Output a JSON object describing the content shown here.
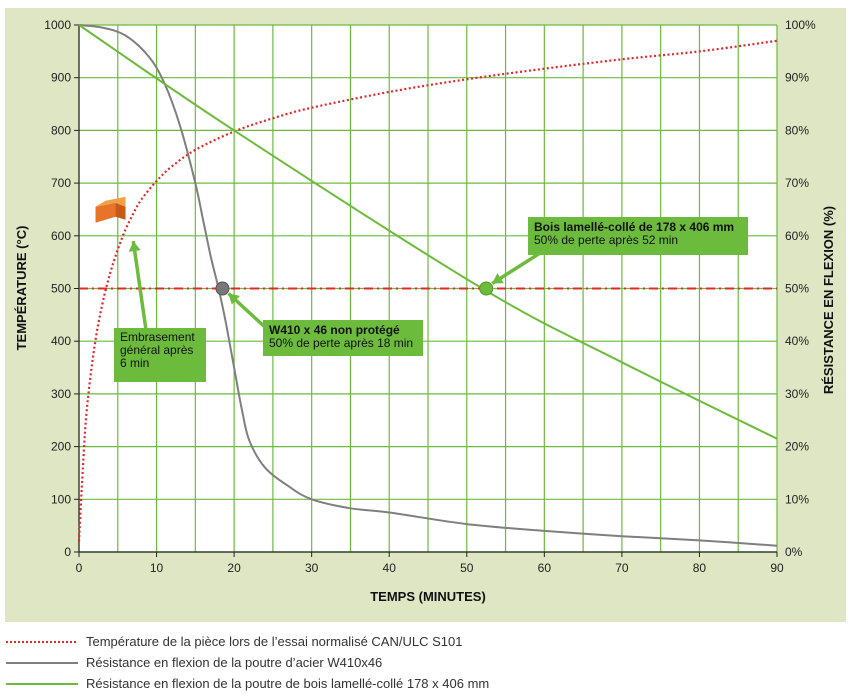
{
  "chart_data": {
    "type": "line",
    "xlabel": "TEMPS (MINUTES)",
    "ylabel_left": "TEMPÉRATURE (°C)",
    "ylabel_right": "RÉSISTANCE EN FLEXION (%)",
    "xlim": [
      0,
      90
    ],
    "ylim_left": [
      0,
      1000
    ],
    "ylim_right": [
      0,
      100
    ],
    "x_ticks": [
      "0",
      "10",
      "20",
      "30",
      "40",
      "50",
      "60",
      "70",
      "80",
      "90"
    ],
    "y_ticks_left": [
      "0",
      "100",
      "200",
      "300",
      "400",
      "500",
      "600",
      "700",
      "800",
      "900",
      "1000"
    ],
    "y_ticks_right": [
      "0%",
      "10%",
      "20%",
      "30%",
      "40%",
      "50%",
      "60%",
      "70%",
      "80%",
      "90%",
      "100%"
    ],
    "grid": true,
    "legend_position": "bottom",
    "reference_line": {
      "axis": "right",
      "value": 50
    },
    "series": [
      {
        "name": "Température de la pièce lors de l’essai normalisé CAN/ULC S101",
        "axis": "left",
        "style": "dotted",
        "color": "#e0282a",
        "x": [
          0,
          0.5,
          1,
          2,
          3,
          4,
          5,
          6,
          7,
          8,
          10,
          12,
          15,
          20,
          25,
          30,
          40,
          50,
          60,
          70,
          80,
          90
        ],
        "y": [
          20,
          160,
          270,
          390,
          470,
          528,
          574,
          612,
          642,
          668,
          704,
          732,
          763,
          798,
          823,
          843,
          873,
          897,
          917,
          935,
          950,
          970
        ]
      },
      {
        "name": "Résistance en flexion de la poutre d’acier W410x46",
        "axis": "right",
        "style": "solid",
        "color": "#7f7f7f",
        "x": [
          0,
          3,
          6,
          9,
          11,
          13,
          15,
          16,
          17,
          18,
          19,
          20,
          21,
          22,
          24,
          27,
          30,
          35,
          40,
          50,
          60,
          70,
          80,
          90
        ],
        "y": [
          100,
          99.5,
          98,
          94,
          89,
          81,
          70,
          63,
          56,
          50,
          43,
          35,
          27,
          21,
          16,
          12.5,
          10,
          8.3,
          7.5,
          5.3,
          4,
          3,
          2.2,
          1.2
        ]
      },
      {
        "name": "Résistance en flexion de la poutre de bois lamellé-collé 178 x 406 mm",
        "axis": "right",
        "style": "solid",
        "color": "#6dbb3c",
        "x": [
          0,
          20,
          52,
          70,
          90
        ],
        "y": [
          100,
          80,
          50,
          36,
          21.5
        ]
      }
    ],
    "markers": [
      {
        "label": "Embrasement général après 6 min",
        "x": 6,
        "y_left": 640,
        "icon": "orange-block"
      },
      {
        "label": "W410 x 46 non protégé",
        "x": 18.5,
        "y_right": 50,
        "color": "#777777"
      },
      {
        "label": "Bois lamellé-collé de 178 x 406 mm",
        "x": 52.5,
        "y_right": 50,
        "color": "#6dbb3c"
      }
    ]
  },
  "callouts": {
    "embrasement": {
      "line1": "Embrasement",
      "line2": "général après",
      "line3": "6 min"
    },
    "acier": {
      "title": "W410 x 46 non protégé",
      "subtitle": "50% de perte après 18 min"
    },
    "bois": {
      "title": "Bois lamellé-collé de 178 x 406 mm",
      "subtitle": "50% de perte après 52 min"
    }
  },
  "legend": [
    {
      "label": "Température de la pièce lors de l’essai normalisé CAN/ULC S101",
      "style": "dotted",
      "color": "#e0282a"
    },
    {
      "label": "Résistance en flexion de la poutre d’acier W410x46",
      "style": "solid",
      "color": "#7f7f7f"
    },
    {
      "label": "Résistance en flexion de la poutre de bois lamellé-collé 178 x 406 mm",
      "style": "solid",
      "color": "#6dbb3c"
    }
  ]
}
